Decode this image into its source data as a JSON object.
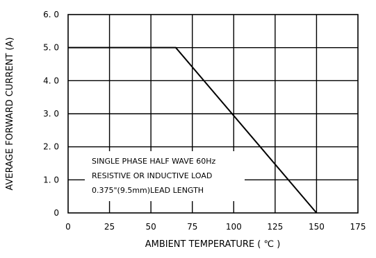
{
  "chart_data": {
    "type": "line",
    "title": "",
    "xlabel": "AMBIENT  TEMPERATURE (  ℃ )",
    "ylabel": "AVERAGE FORWARD CURRENT  (A)",
    "xlim": [
      0,
      175
    ],
    "ylim": [
      0,
      6.0
    ],
    "x_ticks": [
      "0",
      "25",
      "50",
      "75",
      "100",
      "125",
      "150",
      "175"
    ],
    "y_ticks": [
      "0",
      "1. 0",
      "2. 0",
      "3. 0",
      "4. 0",
      "5. 0",
      "6. 0"
    ],
    "grid": true,
    "series": [
      {
        "x": [
          0,
          65,
          150
        ],
        "y": [
          5.0,
          5.0,
          0.0
        ]
      }
    ],
    "annotations": [
      "SINGLE PHASE HALF WAVE 60Hz",
      "RESISTIVE OR INDUCTIVE LOAD",
      "0.375\"(9.5mm)LEAD LENGTH"
    ]
  }
}
